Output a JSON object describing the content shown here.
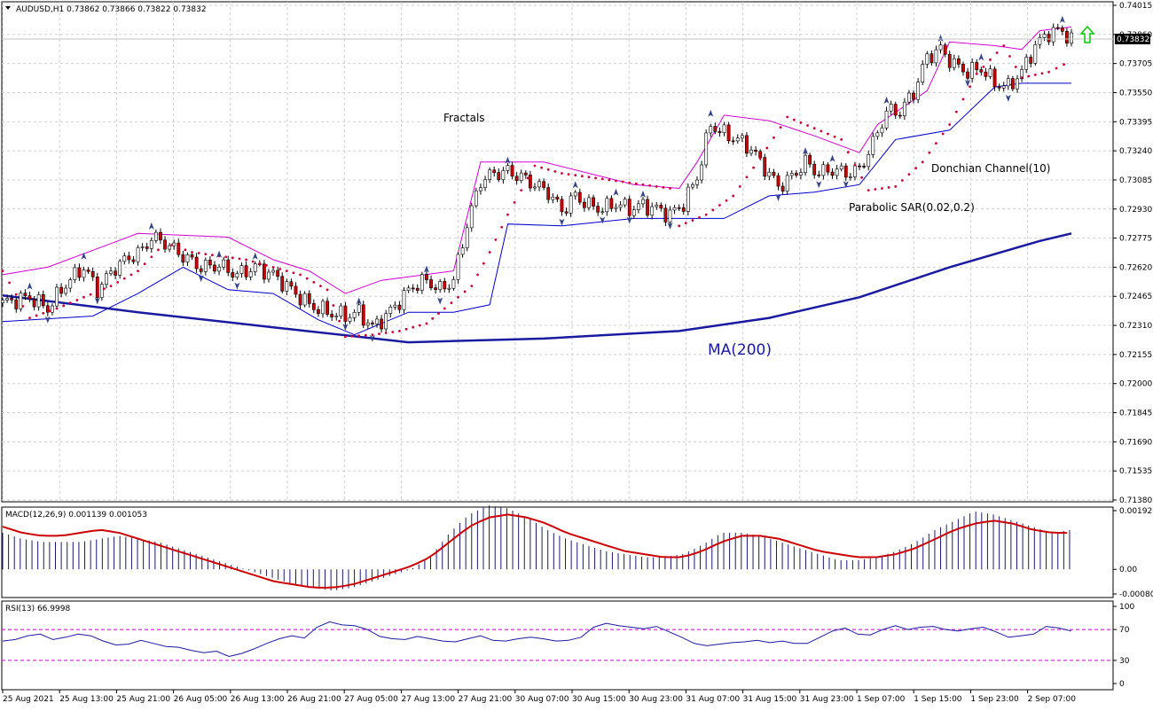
{
  "chart_data": {
    "type": "candlestick",
    "symbol_header": "AUDUSD,H1  0.73862 0.73866 0.73822 0.73832",
    "last_price_label": "0.73832",
    "last_price": 0.73832,
    "arrow_signal": "up",
    "price_axis_ticks": [
      "0.74015",
      "0.73860",
      "0.73705",
      "0.73550",
      "0.73395",
      "0.73240",
      "0.73085",
      "0.72930",
      "0.72775",
      "0.72620",
      "0.72465",
      "0.72310",
      "0.72155",
      "0.72000",
      "0.71845",
      "0.71690",
      "0.71535",
      "0.71380"
    ],
    "ylim": [
      0.7138,
      0.74015
    ],
    "time_axis_ticks": [
      "25 Aug 2021",
      "25 Aug 13:00",
      "25 Aug 21:00",
      "26 Aug 05:00",
      "26 Aug 13:00",
      "26 Aug 21:00",
      "27 Aug 05:00",
      "27 Aug 13:00",
      "27 Aug 21:00",
      "30 Aug 07:00",
      "30 Aug 15:00",
      "30 Aug 23:00",
      "31 Aug 07:00",
      "31 Aug 15:00",
      "31 Aug 23:00",
      "1 Sep 07:00",
      "1 Sep 15:00",
      "1 Sep 23:00",
      "2 Sep 07:00"
    ],
    "annotations": {
      "fractals": "Fractals",
      "donchian": "Donchian Channel(10)",
      "sar": "Parabolic SAR(0.02,0.2)",
      "ma": "MA(200)"
    },
    "close_path": [
      [
        0,
        0.7243
      ],
      [
        6,
        0.7246
      ],
      [
        10,
        0.724
      ],
      [
        14,
        0.7253
      ],
      [
        18,
        0.7262
      ],
      [
        21,
        0.725
      ],
      [
        25,
        0.7262
      ],
      [
        28,
        0.7267
      ],
      [
        31,
        0.7271
      ],
      [
        33,
        0.7278
      ],
      [
        36,
        0.7275
      ],
      [
        40,
        0.7268
      ],
      [
        44,
        0.7262
      ],
      [
        48,
        0.7263
      ],
      [
        52,
        0.7258
      ],
      [
        56,
        0.7262
      ],
      [
        60,
        0.7258
      ],
      [
        64,
        0.725
      ],
      [
        68,
        0.7242
      ],
      [
        72,
        0.7238
      ],
      [
        76,
        0.7236
      ],
      [
        79,
        0.7238
      ],
      [
        82,
        0.723
      ],
      [
        85,
        0.7236
      ],
      [
        88,
        0.7244
      ],
      [
        91,
        0.7252
      ],
      [
        94,
        0.7255
      ],
      [
        97,
        0.725
      ],
      [
        100,
        0.7255
      ],
      [
        103,
        0.7285
      ],
      [
        106,
        0.7308
      ],
      [
        109,
        0.7312
      ],
      [
        112,
        0.7313
      ],
      [
        115,
        0.731
      ],
      [
        118,
        0.7306
      ],
      [
        121,
        0.7302
      ],
      [
        124,
        0.7292
      ],
      [
        127,
        0.73
      ],
      [
        130,
        0.7295
      ],
      [
        133,
        0.7293
      ],
      [
        136,
        0.7296
      ],
      [
        139,
        0.7293
      ],
      [
        142,
        0.7295
      ],
      [
        145,
        0.7293
      ],
      [
        148,
        0.729
      ],
      [
        151,
        0.7296
      ],
      [
        154,
        0.731
      ],
      [
        157,
        0.7338
      ],
      [
        160,
        0.7333
      ],
      [
        163,
        0.733
      ],
      [
        166,
        0.7325
      ],
      [
        169,
        0.7315
      ],
      [
        172,
        0.7305
      ],
      [
        175,
        0.731
      ],
      [
        178,
        0.7318
      ],
      [
        181,
        0.7312
      ],
      [
        184,
        0.7314
      ],
      [
        187,
        0.7312
      ],
      [
        190,
        0.7314
      ],
      [
        193,
        0.7328
      ],
      [
        196,
        0.7345
      ],
      [
        199,
        0.7345
      ],
      [
        202,
        0.7355
      ],
      [
        205,
        0.7374
      ],
      [
        208,
        0.7378
      ],
      [
        211,
        0.737
      ],
      [
        214,
        0.7366
      ],
      [
        217,
        0.7368
      ],
      [
        220,
        0.736
      ],
      [
        223,
        0.7358
      ],
      [
        226,
        0.7366
      ],
      [
        229,
        0.738
      ],
      [
        232,
        0.7387
      ],
      [
        235,
        0.7388
      ],
      [
        237,
        0.7383
      ]
    ],
    "ma200": [
      [
        0,
        0.7247
      ],
      [
        30,
        0.7238
      ],
      [
        60,
        0.723
      ],
      [
        90,
        0.7222
      ],
      [
        120,
        0.7224
      ],
      [
        150,
        0.7228
      ],
      [
        170,
        0.7235
      ],
      [
        190,
        0.7246
      ],
      [
        210,
        0.7262
      ],
      [
        230,
        0.7276
      ],
      [
        237,
        0.728
      ]
    ],
    "donchian_upper": [
      [
        0,
        0.7258
      ],
      [
        10,
        0.7262
      ],
      [
        30,
        0.728
      ],
      [
        50,
        0.7278
      ],
      [
        60,
        0.7266
      ],
      [
        68,
        0.726
      ],
      [
        76,
        0.7248
      ],
      [
        84,
        0.7255
      ],
      [
        100,
        0.726
      ],
      [
        106,
        0.7318
      ],
      [
        120,
        0.7318
      ],
      [
        140,
        0.7306
      ],
      [
        150,
        0.7304
      ],
      [
        154,
        0.7318
      ],
      [
        160,
        0.7343
      ],
      [
        170,
        0.734
      ],
      [
        180,
        0.7332
      ],
      [
        190,
        0.7323
      ],
      [
        194,
        0.7338
      ],
      [
        205,
        0.7356
      ],
      [
        210,
        0.7382
      ],
      [
        220,
        0.738
      ],
      [
        226,
        0.7378
      ],
      [
        230,
        0.7388
      ],
      [
        237,
        0.739
      ]
    ],
    "donchian_lower": [
      [
        0,
        0.7233
      ],
      [
        20,
        0.7236
      ],
      [
        30,
        0.7248
      ],
      [
        40,
        0.7262
      ],
      [
        50,
        0.725
      ],
      [
        60,
        0.7248
      ],
      [
        70,
        0.7234
      ],
      [
        78,
        0.7226
      ],
      [
        90,
        0.7238
      ],
      [
        100,
        0.7238
      ],
      [
        108,
        0.7242
      ],
      [
        112,
        0.7285
      ],
      [
        124,
        0.7284
      ],
      [
        140,
        0.7288
      ],
      [
        160,
        0.7288
      ],
      [
        170,
        0.73
      ],
      [
        180,
        0.7302
      ],
      [
        190,
        0.7306
      ],
      [
        198,
        0.733
      ],
      [
        210,
        0.7335
      ],
      [
        220,
        0.7358
      ],
      [
        226,
        0.736
      ],
      [
        237,
        0.736
      ]
    ],
    "sar_dots": [
      [
        0,
        0.726
      ],
      [
        6,
        0.7235
      ],
      [
        12,
        0.724
      ],
      [
        18,
        0.7246
      ],
      [
        24,
        0.7252
      ],
      [
        30,
        0.726
      ],
      [
        36,
        0.7275
      ],
      [
        42,
        0.727
      ],
      [
        48,
        0.7268
      ],
      [
        54,
        0.7266
      ],
      [
        60,
        0.7262
      ],
      [
        66,
        0.7258
      ],
      [
        72,
        0.725
      ],
      [
        76,
        0.7225
      ],
      [
        82,
        0.7226
      ],
      [
        88,
        0.7228
      ],
      [
        94,
        0.7232
      ],
      [
        98,
        0.724
      ],
      [
        104,
        0.7252
      ],
      [
        108,
        0.727
      ],
      [
        112,
        0.729
      ],
      [
        118,
        0.7316
      ],
      [
        124,
        0.7312
      ],
      [
        130,
        0.731
      ],
      [
        136,
        0.7308
      ],
      [
        142,
        0.7306
      ],
      [
        148,
        0.7304
      ],
      [
        150,
        0.7284
      ],
      [
        156,
        0.729
      ],
      [
        162,
        0.73
      ],
      [
        168,
        0.732
      ],
      [
        174,
        0.7342
      ],
      [
        180,
        0.7336
      ],
      [
        186,
        0.733
      ],
      [
        192,
        0.7303
      ],
      [
        198,
        0.7305
      ],
      [
        204,
        0.7318
      ],
      [
        210,
        0.7338
      ],
      [
        216,
        0.7365
      ],
      [
        222,
        0.738
      ],
      [
        226,
        0.7363
      ],
      [
        232,
        0.7366
      ],
      [
        237,
        0.7372
      ]
    ],
    "macd": {
      "label": "MACD(12,26,9) 0.001139 0.001053",
      "axis_ticks": [
        "0.001926",
        "0.00",
        "-0.000807"
      ],
      "ylim": [
        -0.000807,
        0.001926
      ],
      "histogram": [
        0.0012,
        0.001,
        0.0009,
        0.0009,
        0.0009,
        0.001,
        0.0011,
        0.001,
        0.0009,
        0.0007,
        0.0005,
        0.0003,
        0.0001,
        -0.0001,
        -0.0003,
        -0.0005,
        -0.0006,
        -0.0007,
        -0.0006,
        -0.0004,
        -0.0002,
        0.0,
        0.0004,
        0.0012,
        0.0018,
        0.0021,
        0.002,
        0.0017,
        0.0013,
        0.001,
        0.0008,
        0.0006,
        0.0005,
        0.0004,
        0.0004,
        0.0005,
        0.0008,
        0.0012,
        0.0012,
        0.0011,
        0.0009,
        0.0007,
        0.0005,
        0.0003,
        0.0003,
        0.0004,
        0.0006,
        0.0009,
        0.0013,
        0.0016,
        0.0019,
        0.0018,
        0.0016,
        0.0014,
        0.0012,
        0.0013
      ],
      "signal": [
        0.0014,
        0.0012,
        0.0011,
        0.0011,
        0.0012,
        0.0013,
        0.0012,
        0.001,
        0.0008,
        0.0006,
        0.0004,
        0.0002,
        0.0,
        -0.0002,
        -0.0004,
        -0.0005,
        -0.0006,
        -0.0006,
        -0.0005,
        -0.0003,
        -0.0001,
        0.0001,
        0.0004,
        0.0009,
        0.0014,
        0.0017,
        0.0018,
        0.0017,
        0.0015,
        0.0012,
        0.001,
        0.0008,
        0.0006,
        0.0005,
        0.0004,
        0.0004,
        0.0006,
        0.0009,
        0.0011,
        0.0011,
        0.001,
        0.0008,
        0.0006,
        0.0005,
        0.0004,
        0.0004,
        0.0005,
        0.0007,
        0.001,
        0.0013,
        0.0015,
        0.0016,
        0.0015,
        0.0013,
        0.0012,
        0.0012
      ]
    },
    "rsi": {
      "label": "RSI(13) 66.9998",
      "axis_ticks": [
        "100",
        "70",
        "30",
        "0"
      ],
      "levels": [
        70,
        30
      ],
      "values": [
        55,
        57,
        62,
        64,
        57,
        60,
        64,
        62,
        55,
        50,
        51,
        56,
        52,
        48,
        47,
        43,
        40,
        42,
        35,
        39,
        45,
        52,
        58,
        62,
        59,
        73,
        80,
        76,
        75,
        70,
        61,
        58,
        57,
        61,
        58,
        55,
        54,
        58,
        62,
        56,
        55,
        58,
        60,
        58,
        55,
        56,
        60,
        73,
        78,
        75,
        73,
        71,
        74,
        67,
        60,
        52,
        49,
        51,
        53,
        54,
        56,
        53,
        55,
        52,
        52,
        60,
        68,
        72,
        64,
        63,
        70,
        75,
        70,
        73,
        74,
        70,
        68,
        71,
        73,
        67,
        60,
        62,
        64,
        74,
        72,
        68
      ]
    }
  }
}
